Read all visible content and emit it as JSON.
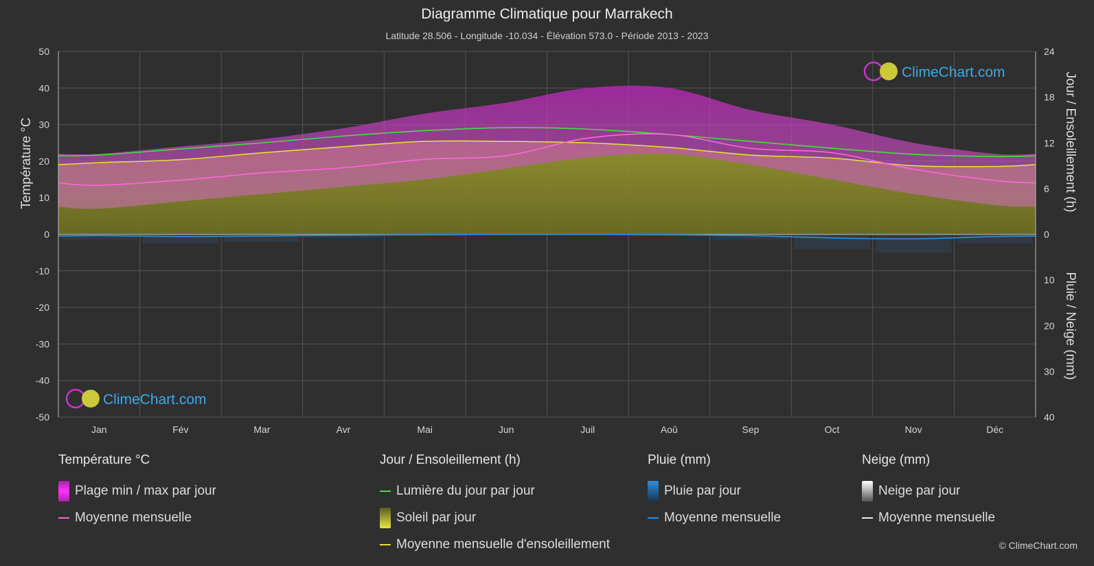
{
  "header": {
    "title": "Diagramme Climatique pour Marrakech",
    "subtitle": "Latitude 28.506 - Longitude -10.034 - Élévation 573.0 - Période 2013 - 2023"
  },
  "chart_data": {
    "type": "area",
    "title": "Diagramme Climatique pour Marrakech",
    "ylabel_left": "Température °C",
    "ylabel_right_top": "Jour / Ensoleillement (h)",
    "ylabel_right_bottom": "Pluie / Neige (mm)",
    "ylim_left": [
      -50,
      50
    ],
    "yticks_left": [
      50,
      40,
      30,
      20,
      10,
      0,
      -10,
      -20,
      -30,
      -40,
      -50
    ],
    "yticks_right_top": [
      24,
      18,
      12,
      6,
      0
    ],
    "yticks_right_bottom": [
      0,
      10,
      20,
      30,
      40
    ],
    "categories": [
      "Jan",
      "Fév",
      "Mar",
      "Avr",
      "Mai",
      "Jun",
      "Juil",
      "Aoû",
      "Sep",
      "Oct",
      "Nov",
      "Déc"
    ],
    "grid": true,
    "series": [
      {
        "name": "Lumière du jour par jour",
        "axis": "hours",
        "color": "#44dd44",
        "values": [
          10.4,
          11.2,
          12.0,
          12.9,
          13.6,
          14.0,
          13.8,
          13.1,
          12.2,
          11.3,
          10.5,
          10.2
        ]
      },
      {
        "name": "Moyenne mensuelle d'ensoleillement",
        "axis": "hours",
        "color": "#e0e040",
        "values": [
          9.4,
          9.8,
          10.7,
          11.5,
          12.2,
          12.2,
          12.0,
          11.4,
          10.4,
          10.0,
          9.0,
          8.9
        ]
      },
      {
        "name": "Moyenne mensuelle",
        "axis": "temperature",
        "color": "#ff66dd",
        "values": [
          13.4,
          14.8,
          16.8,
          18.2,
          20.5,
          21.5,
          26.3,
          27.3,
          23.5,
          22.3,
          17.8,
          14.7
        ]
      },
      {
        "name": "Moyenne mensuelle pluie",
        "axis": "precip",
        "color": "#2f8fdf",
        "values": [
          0.3,
          0.5,
          0.4,
          0.2,
          0.1,
          0.0,
          0.0,
          0.1,
          0.3,
          0.8,
          1.0,
          0.5
        ]
      },
      {
        "name": "Plage min / max par jour",
        "axis": "temperature",
        "min": [
          7,
          9,
          11,
          13,
          15,
          18,
          21,
          22,
          19,
          15,
          11,
          8
        ],
        "max": [
          22,
          24,
          26,
          29,
          33,
          36,
          40,
          40,
          34,
          30,
          25,
          22
        ]
      }
    ]
  },
  "legend": {
    "temperature": {
      "header": "Température °C",
      "range": "Plage min / max par jour",
      "mean": "Moyenne mensuelle"
    },
    "sun": {
      "header": "Jour / Ensoleillement (h)",
      "daylight": "Lumière du jour par jour",
      "sunshine": "Soleil par jour",
      "mean": "Moyenne mensuelle d'ensoleillement"
    },
    "rain": {
      "header": "Pluie (mm)",
      "daily": "Pluie par jour",
      "mean": "Moyenne mensuelle"
    },
    "snow": {
      "header": "Neige (mm)",
      "daily": "Neige par jour",
      "mean": "Moyenne mensuelle"
    }
  },
  "brand": {
    "logo_text": "ClimeChart.com",
    "copyright": "© ClimeChart.com"
  },
  "colors": {
    "background": "#2f2f2f",
    "temp_range": "#cc33cc",
    "sunshine_fill": "#8a8a2a",
    "daylight": "#44dd44",
    "sun_mean": "#e0e040",
    "temp_mean": "#ff66dd",
    "rain": "#2f8fdf",
    "logo_text": "#3fa8e8"
  }
}
